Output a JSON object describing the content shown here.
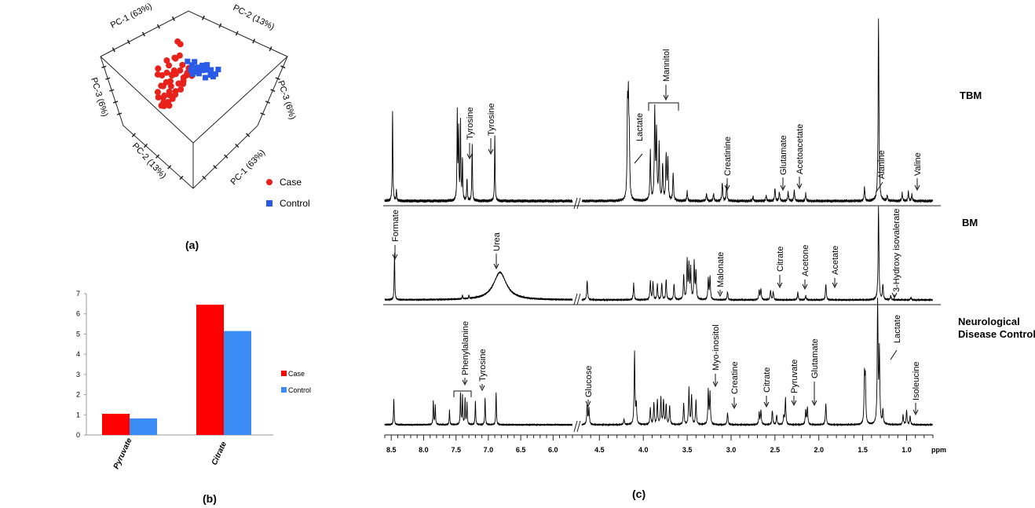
{
  "chart_data": [
    {
      "type": "scatter",
      "panel": "(a)",
      "title": "",
      "axes": [
        "PC-1 (63%)",
        "PC-2 (13%)",
        "PC-3 (6%)"
      ],
      "tick_placeholder": "",
      "series": [
        {
          "name": "Case",
          "color": "#e8211b",
          "marker": "circle",
          "points": [
            [
              -1.2,
              4.1,
              0.0
            ],
            [
              -0.9,
              3.8,
              0.0
            ],
            [
              -1.6,
              2.4,
              0.2
            ],
            [
              -1.3,
              2.0,
              -0.4
            ],
            [
              -2.2,
              1.5,
              0.1
            ],
            [
              -2.5,
              0.8,
              0.3
            ],
            [
              -1.8,
              1.2,
              0.6
            ],
            [
              -1.0,
              1.0,
              0.2
            ],
            [
              -0.6,
              1.4,
              -0.2
            ],
            [
              -0.3,
              0.9,
              0.5
            ],
            [
              0.0,
              1.2,
              0.1
            ],
            [
              0.2,
              0.8,
              -0.3
            ],
            [
              -2.9,
              0.3,
              -0.1
            ],
            [
              -2.6,
              -0.2,
              0.4
            ],
            [
              -2.0,
              -0.3,
              0.0
            ],
            [
              -1.6,
              0.2,
              -0.5
            ],
            [
              -1.2,
              -0.4,
              0.3
            ],
            [
              -0.8,
              0.1,
              0.7
            ],
            [
              -0.4,
              -0.1,
              -0.4
            ],
            [
              -3.1,
              -0.7,
              0.2
            ],
            [
              -2.7,
              -1.0,
              -0.3
            ],
            [
              -2.3,
              -1.2,
              0.5
            ],
            [
              -1.9,
              -0.9,
              -0.1
            ],
            [
              -1.5,
              -1.3,
              0.2
            ],
            [
              -3.4,
              -1.5,
              0.0
            ],
            [
              -3.0,
              -1.8,
              0.6
            ],
            [
              -2.6,
              -2.0,
              -0.2
            ],
            [
              -2.2,
              -1.7,
              0.3
            ],
            [
              -3.2,
              -2.3,
              -0.4
            ],
            [
              -2.8,
              -2.6,
              0.1
            ],
            [
              -2.4,
              -2.4,
              0.4
            ],
            [
              -3.0,
              -3.0,
              0.0
            ],
            [
              -2.6,
              -3.2,
              -0.3
            ],
            [
              -2.2,
              -2.9,
              0.2
            ],
            [
              -1.8,
              -2.2,
              0.1
            ],
            [
              -1.4,
              -1.9,
              -0.2
            ],
            [
              -1.0,
              -1.0,
              0.4
            ],
            [
              -0.6,
              -0.6,
              0.0
            ],
            [
              0.3,
              0.4,
              0.2
            ],
            [
              -0.2,
              0.3,
              -0.1
            ],
            [
              -3.5,
              0.6,
              0.3
            ],
            [
              -3.3,
              1.0,
              -0.2
            ],
            [
              -2.0,
              0.6,
              0.5
            ],
            [
              -1.4,
              0.5,
              0.0
            ],
            [
              -2.4,
              2.0,
              0.0
            ],
            [
              -1.0,
              2.6,
              0.1
            ]
          ]
        },
        {
          "name": "Control",
          "color": "#2a5be8",
          "marker": "square",
          "points": [
            [
              -0.1,
              1.9,
              0.0
            ],
            [
              0.3,
              1.6,
              0.2
            ],
            [
              0.7,
              1.8,
              -0.1
            ],
            [
              1.0,
              1.4,
              0.3
            ],
            [
              1.3,
              1.1,
              0.0
            ],
            [
              1.6,
              0.8,
              -0.2
            ],
            [
              2.0,
              1.0,
              0.1
            ],
            [
              2.3,
              0.6,
              0.4
            ],
            [
              2.6,
              0.8,
              -0.3
            ],
            [
              3.0,
              0.5,
              0.0
            ],
            [
              1.8,
              0.2,
              0.2
            ],
            [
              1.2,
              0.5,
              -0.1
            ],
            [
              0.6,
              0.9,
              0.3
            ],
            [
              0.9,
              1.2,
              0.0
            ],
            [
              2.8,
              0.1,
              -0.2
            ],
            [
              0.1,
              1.2,
              0.5
            ],
            [
              1.5,
              1.5,
              0.1
            ],
            [
              2.2,
              1.3,
              -0.4
            ],
            [
              0.4,
              0.6,
              0.2
            ],
            [
              3.3,
              1.0,
              0.0
            ]
          ]
        }
      ],
      "legend": [
        "Case",
        "Control"
      ],
      "legend_position": "bottom-right"
    },
    {
      "type": "bar",
      "panel": "(b)",
      "title": "",
      "categories": [
        "Pyruvate",
        "Citrate"
      ],
      "series": [
        {
          "name": "Case",
          "color": "#fe0000",
          "values": [
            1.05,
            6.45
          ]
        },
        {
          "name": "Control",
          "color": "#3b8df5",
          "values": [
            0.82,
            5.15
          ]
        }
      ],
      "xlabel": "",
      "ylabel": "",
      "ylim": [
        0,
        7
      ],
      "yticks": [
        "0",
        "1",
        "2",
        "3",
        "4",
        "5",
        "6",
        "7"
      ],
      "legend": [
        "Case",
        "Control"
      ],
      "legend_position": "right"
    },
    {
      "type": "line",
      "panel": "(c)",
      "title": "",
      "xlabel": "ppm",
      "xlim": [
        8.6,
        0.7
      ],
      "x_axis_break": [
        5.7,
        4.7
      ],
      "xticks": [
        "8.5",
        "8.0",
        "7.5",
        "7.0",
        "6.5",
        "6.0",
        "4.5",
        "4.0",
        "3.5",
        "3.0",
        "2.5",
        "2.0",
        "1.5",
        "1.0"
      ],
      "series": [
        {
          "name": "TBM",
          "color": "#000000",
          "peaks": [
            [
              8.48,
              1.0
            ],
            [
              8.42,
              0.12
            ],
            [
              7.48,
              0.95
            ],
            [
              7.46,
              0.75
            ],
            [
              7.43,
              0.85
            ],
            [
              7.4,
              0.45
            ],
            [
              7.33,
              0.25
            ],
            [
              7.25,
              0.62
            ],
            [
              6.9,
              0.72
            ],
            [
              4.18,
              0.95
            ],
            [
              4.17,
              0.95
            ],
            [
              4.16,
              0.6
            ],
            [
              3.92,
              0.55
            ],
            [
              3.87,
              1.0
            ],
            [
              3.85,
              0.75
            ],
            [
              3.82,
              0.62
            ],
            [
              3.78,
              0.4
            ],
            [
              3.74,
              0.5
            ],
            [
              3.72,
              0.45
            ],
            [
              3.66,
              0.3
            ],
            [
              3.5,
              0.1
            ],
            [
              3.28,
              0.08
            ],
            [
              3.2,
              0.08
            ],
            [
              3.1,
              0.2
            ],
            [
              3.05,
              0.18
            ],
            [
              2.75,
              0.05
            ],
            [
              2.6,
              0.06
            ],
            [
              2.5,
              0.14
            ],
            [
              2.45,
              0.1
            ],
            [
              2.35,
              0.1
            ],
            [
              2.28,
              0.12
            ],
            [
              2.15,
              0.08
            ],
            [
              1.48,
              0.15
            ],
            [
              1.32,
              2.0
            ],
            [
              1.22,
              0.06
            ],
            [
              1.05,
              0.08
            ],
            [
              0.98,
              0.1
            ],
            [
              0.94,
              0.07
            ]
          ],
          "annotations": [
            "Tyrosine",
            "Tyrosine",
            "Lactate",
            "Mannitol",
            "Creatinine",
            "Glutamate",
            "Acetoacetate",
            "Alanine",
            "Valine"
          ]
        },
        {
          "name": "BM",
          "color": "#000000",
          "peaks": [
            [
              8.45,
              0.85
            ],
            [
              7.4,
              0.07
            ],
            [
              7.3,
              0.06
            ],
            [
              4.64,
              0.35
            ],
            [
              4.11,
              0.3
            ],
            [
              3.92,
              0.35
            ],
            [
              3.89,
              0.32
            ],
            [
              3.84,
              0.28
            ],
            [
              3.79,
              0.3
            ],
            [
              3.74,
              0.38
            ],
            [
              3.65,
              0.3
            ],
            [
              3.54,
              0.45
            ],
            [
              3.5,
              0.7
            ],
            [
              3.48,
              0.6
            ],
            [
              3.46,
              0.55
            ],
            [
              3.42,
              0.68
            ],
            [
              3.4,
              0.5
            ],
            [
              3.26,
              0.38
            ],
            [
              3.24,
              0.42
            ],
            [
              3.04,
              0.15
            ],
            [
              2.68,
              0.18
            ],
            [
              2.66,
              0.2
            ],
            [
              2.55,
              0.18
            ],
            [
              2.52,
              0.15
            ],
            [
              2.24,
              0.14
            ],
            [
              2.15,
              0.08
            ],
            [
              1.92,
              0.3
            ],
            [
              1.32,
              1.7
            ],
            [
              1.27,
              0.28
            ],
            [
              1.18,
              0.08
            ],
            [
              0.95,
              0.05
            ]
          ],
          "broad_peaks": [
            [
              6.82,
              0.5,
              0.12
            ]
          ],
          "annotations": [
            "Formate",
            "Urea",
            "Malonate",
            "Citrate",
            "Acetone",
            "Acetate",
            "3-Hydroxy isovalerate"
          ]
        },
        {
          "name": "Neurological Disease Control",
          "color": "#000000",
          "peaks": [
            [
              8.46,
              0.55
            ],
            [
              7.85,
              0.5
            ],
            [
              7.82,
              0.4
            ],
            [
              7.6,
              0.3
            ],
            [
              7.43,
              0.65
            ],
            [
              7.4,
              0.6
            ],
            [
              7.36,
              0.55
            ],
            [
              7.33,
              0.45
            ],
            [
              7.2,
              0.5
            ],
            [
              7.05,
              0.55
            ],
            [
              6.88,
              0.65
            ],
            [
              4.64,
              0.4
            ],
            [
              4.62,
              0.35
            ],
            [
              4.22,
              0.12
            ],
            [
              4.1,
              1.5
            ],
            [
              4.08,
              0.4
            ],
            [
              3.92,
              0.35
            ],
            [
              3.88,
              0.45
            ],
            [
              3.84,
              0.5
            ],
            [
              3.8,
              0.55
            ],
            [
              3.77,
              0.5
            ],
            [
              3.74,
              0.42
            ],
            [
              3.7,
              0.4
            ],
            [
              3.54,
              0.45
            ],
            [
              3.48,
              0.75
            ],
            [
              3.45,
              0.6
            ],
            [
              3.4,
              0.5
            ],
            [
              3.26,
              0.7
            ],
            [
              3.24,
              0.65
            ],
            [
              3.04,
              0.25
            ],
            [
              2.68,
              0.25
            ],
            [
              2.66,
              0.3
            ],
            [
              2.53,
              0.3
            ],
            [
              2.48,
              0.2
            ],
            [
              2.4,
              0.18
            ],
            [
              2.38,
              0.55
            ],
            [
              2.15,
              0.3
            ],
            [
              2.13,
              0.35
            ],
            [
              1.92,
              0.45
            ],
            [
              1.48,
              0.95
            ],
            [
              1.47,
              0.9
            ],
            [
              1.33,
              2.5
            ],
            [
              1.31,
              1.5
            ],
            [
              1.27,
              0.3
            ],
            [
              1.04,
              0.2
            ],
            [
              1.0,
              0.3
            ],
            [
              0.96,
              0.18
            ]
          ],
          "annotations": [
            "Phenylalanine",
            "Tyrosine",
            "Glucose",
            "Myo-inositol",
            "Creatine",
            "Citrate",
            "Pyruvate",
            "Glutamate",
            "Lactate",
            "Isoleucine"
          ]
        }
      ]
    }
  ]
}
